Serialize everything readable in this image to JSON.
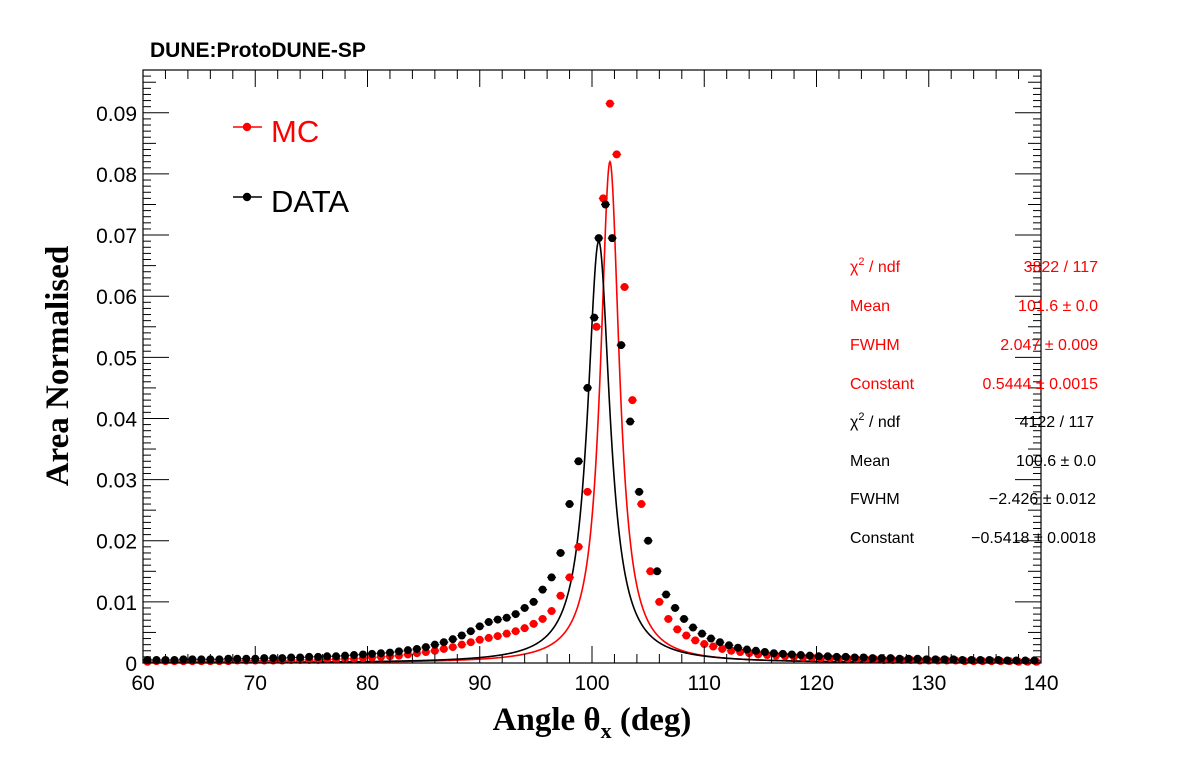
{
  "experiment_label": "DUNE:ProtoDUNE-SP",
  "colors": {
    "mc": "#ff0000",
    "data": "#000000",
    "axis": "#000000"
  },
  "legend": [
    {
      "label": "MC",
      "color": "#ff0000"
    },
    {
      "label": "DATA",
      "color": "#000000"
    }
  ],
  "stats": {
    "mc": [
      {
        "name_prefix": "χ",
        "name_sup": "2",
        "name_suffix": " / ndf",
        "value": "3822 / 117"
      },
      {
        "name_prefix": "Mean",
        "name_sup": "",
        "name_suffix": "",
        "value": "101.6 ± 0.0"
      },
      {
        "name_prefix": "FWHM",
        "name_sup": "",
        "name_suffix": "",
        "value": "2.047 ± 0.009"
      },
      {
        "name_prefix": "Constant",
        "name_sup": "",
        "name_suffix": "",
        "value": "0.5444 ± 0.0015"
      }
    ],
    "data": [
      {
        "name_prefix": "χ",
        "name_sup": "2",
        "name_suffix": " / ndf",
        "value": "4122 / 117"
      },
      {
        "name_prefix": "Mean",
        "name_sup": "",
        "name_suffix": "",
        "value": "100.6 ± 0.0"
      },
      {
        "name_prefix": "FWHM",
        "name_sup": "",
        "name_suffix": "",
        "value": "−2.426 ± 0.012"
      },
      {
        "name_prefix": "Constant",
        "name_sup": "",
        "name_suffix": "",
        "value": "−0.5418 ± 0.0018"
      }
    ]
  },
  "chart_data": {
    "type": "scatter",
    "xlabel_main": "Angle  θ",
    "xlabel_sub": "x",
    "xlabel_unit": " (deg)",
    "ylabel": "Area Normalised",
    "xlim": [
      60,
      140
    ],
    "ylim": [
      0,
      0.097
    ],
    "xticks": [
      60,
      70,
      80,
      90,
      100,
      110,
      120,
      130,
      140
    ],
    "xtick_labels": [
      "60",
      "70",
      "80",
      "90",
      "100",
      "110",
      "120",
      "130",
      "140"
    ],
    "yticks": [
      0,
      0.01,
      0.02,
      0.03,
      0.04,
      0.05,
      0.06,
      0.07,
      0.08,
      0.09
    ],
    "ytick_labels": [
      "0",
      "0.01",
      "0.02",
      "0.03",
      "0.04",
      "0.05",
      "0.06",
      "0.07",
      "0.08",
      "0.09"
    ],
    "bin_width": 0.8,
    "series": [
      {
        "name": "MC",
        "color": "#ff0000",
        "points": [
          [
            60.4,
            0.0002
          ],
          [
            61.2,
            0.0003
          ],
          [
            62.0,
            0.0003
          ],
          [
            62.8,
            0.0003
          ],
          [
            63.6,
            0.0003
          ],
          [
            64.4,
            0.0003
          ],
          [
            65.2,
            0.0003
          ],
          [
            66.0,
            0.0003
          ],
          [
            66.8,
            0.0003
          ],
          [
            67.6,
            0.0003
          ],
          [
            68.4,
            0.0004
          ],
          [
            69.2,
            0.0004
          ],
          [
            70.0,
            0.0004
          ],
          [
            70.8,
            0.0004
          ],
          [
            71.6,
            0.0004
          ],
          [
            72.4,
            0.0004
          ],
          [
            73.2,
            0.0005
          ],
          [
            74.0,
            0.0005
          ],
          [
            74.8,
            0.0005
          ],
          [
            75.6,
            0.0005
          ],
          [
            76.4,
            0.0006
          ],
          [
            77.2,
            0.0006
          ],
          [
            78.0,
            0.0007
          ],
          [
            78.8,
            0.0007
          ],
          [
            79.6,
            0.0008
          ],
          [
            80.4,
            0.0009
          ],
          [
            81.2,
            0.001
          ],
          [
            82.0,
            0.0011
          ],
          [
            82.8,
            0.0012
          ],
          [
            83.6,
            0.0014
          ],
          [
            84.4,
            0.0016
          ],
          [
            85.2,
            0.0018
          ],
          [
            86.0,
            0.002
          ],
          [
            86.8,
            0.0023
          ],
          [
            87.6,
            0.0026
          ],
          [
            88.4,
            0.003
          ],
          [
            89.2,
            0.0034
          ],
          [
            90.0,
            0.0038
          ],
          [
            90.8,
            0.0041
          ],
          [
            91.6,
            0.0044
          ],
          [
            92.4,
            0.0048
          ],
          [
            93.2,
            0.0052
          ],
          [
            94.0,
            0.0057
          ],
          [
            94.8,
            0.0064
          ],
          [
            95.6,
            0.0072
          ],
          [
            96.4,
            0.0085
          ],
          [
            97.2,
            0.011
          ],
          [
            98.0,
            0.014
          ],
          [
            98.8,
            0.019
          ],
          [
            99.6,
            0.028
          ],
          [
            100.4,
            0.055
          ],
          [
            101.0,
            0.076
          ],
          [
            101.6,
            0.0915
          ],
          [
            102.2,
            0.0832
          ],
          [
            102.9,
            0.0615
          ],
          [
            103.6,
            0.043
          ],
          [
            104.4,
            0.026
          ],
          [
            105.2,
            0.015
          ],
          [
            106.0,
            0.01
          ],
          [
            106.8,
            0.0072
          ],
          [
            107.6,
            0.0055
          ],
          [
            108.4,
            0.0045
          ],
          [
            109.2,
            0.0037
          ],
          [
            110.0,
            0.0031
          ],
          [
            110.8,
            0.0027
          ],
          [
            111.6,
            0.0023
          ],
          [
            112.4,
            0.002
          ],
          [
            113.2,
            0.0018
          ],
          [
            114.0,
            0.0016
          ],
          [
            114.8,
            0.0014
          ],
          [
            115.6,
            0.0013
          ],
          [
            116.4,
            0.0012
          ],
          [
            117.2,
            0.0011
          ],
          [
            118.0,
            0.001
          ],
          [
            118.8,
            0.0009
          ],
          [
            119.6,
            0.0009
          ],
          [
            120.4,
            0.0008
          ],
          [
            121.2,
            0.0008
          ],
          [
            122.0,
            0.0007
          ],
          [
            122.8,
            0.0007
          ],
          [
            123.6,
            0.0006
          ],
          [
            124.4,
            0.0006
          ],
          [
            125.2,
            0.0006
          ],
          [
            126.0,
            0.0005
          ],
          [
            126.8,
            0.0005
          ],
          [
            127.6,
            0.0005
          ],
          [
            128.4,
            0.0005
          ],
          [
            129.2,
            0.0004
          ],
          [
            130.0,
            0.0004
          ],
          [
            130.8,
            0.0004
          ],
          [
            131.6,
            0.0004
          ],
          [
            132.4,
            0.0004
          ],
          [
            133.2,
            0.0003
          ],
          [
            134.0,
            0.0003
          ],
          [
            134.8,
            0.0003
          ],
          [
            135.6,
            0.0003
          ],
          [
            136.4,
            0.0003
          ],
          [
            137.2,
            0.0003
          ],
          [
            138.0,
            0.0002
          ],
          [
            138.8,
            0.0002
          ],
          [
            139.6,
            0.0002
          ]
        ]
      },
      {
        "name": "DATA",
        "color": "#000000",
        "points": [
          [
            60.4,
            0.0005
          ],
          [
            61.2,
            0.0005
          ],
          [
            62.0,
            0.0005
          ],
          [
            62.8,
            0.0005
          ],
          [
            63.6,
            0.0006
          ],
          [
            64.4,
            0.0006
          ],
          [
            65.2,
            0.0006
          ],
          [
            66.0,
            0.0006
          ],
          [
            66.8,
            0.0006
          ],
          [
            67.6,
            0.0007
          ],
          [
            68.4,
            0.0007
          ],
          [
            69.2,
            0.0007
          ],
          [
            70.0,
            0.0007
          ],
          [
            70.8,
            0.0008
          ],
          [
            71.6,
            0.0008
          ],
          [
            72.4,
            0.0008
          ],
          [
            73.2,
            0.0009
          ],
          [
            74.0,
            0.0009
          ],
          [
            74.8,
            0.001
          ],
          [
            75.6,
            0.001
          ],
          [
            76.4,
            0.0011
          ],
          [
            77.2,
            0.0011
          ],
          [
            78.0,
            0.0012
          ],
          [
            78.8,
            0.0013
          ],
          [
            79.6,
            0.0014
          ],
          [
            80.4,
            0.0015
          ],
          [
            81.2,
            0.0016
          ],
          [
            82.0,
            0.0017
          ],
          [
            82.8,
            0.0019
          ],
          [
            83.6,
            0.0021
          ],
          [
            84.4,
            0.0023
          ],
          [
            85.2,
            0.0026
          ],
          [
            86.0,
            0.003
          ],
          [
            86.8,
            0.0034
          ],
          [
            87.6,
            0.0039
          ],
          [
            88.4,
            0.0045
          ],
          [
            89.2,
            0.0052
          ],
          [
            90.0,
            0.006
          ],
          [
            90.8,
            0.0067
          ],
          [
            91.6,
            0.0071
          ],
          [
            92.4,
            0.0074
          ],
          [
            93.2,
            0.008
          ],
          [
            94.0,
            0.009
          ],
          [
            94.8,
            0.01
          ],
          [
            95.6,
            0.012
          ],
          [
            96.4,
            0.014
          ],
          [
            97.2,
            0.018
          ],
          [
            98.0,
            0.026
          ],
          [
            98.8,
            0.033
          ],
          [
            99.6,
            0.045
          ],
          [
            100.2,
            0.0565
          ],
          [
            100.6,
            0.0695
          ],
          [
            101.2,
            0.075
          ],
          [
            101.8,
            0.0695
          ],
          [
            102.6,
            0.052
          ],
          [
            103.4,
            0.0395
          ],
          [
            104.2,
            0.028
          ],
          [
            105.0,
            0.02
          ],
          [
            105.8,
            0.015
          ],
          [
            106.6,
            0.0112
          ],
          [
            107.4,
            0.009
          ],
          [
            108.2,
            0.0072
          ],
          [
            109.0,
            0.0058
          ],
          [
            109.8,
            0.0048
          ],
          [
            110.6,
            0.004
          ],
          [
            111.4,
            0.0034
          ],
          [
            112.2,
            0.0029
          ],
          [
            113.0,
            0.0025
          ],
          [
            113.8,
            0.0022
          ],
          [
            114.6,
            0.002
          ],
          [
            115.4,
            0.0018
          ],
          [
            116.2,
            0.0016
          ],
          [
            117.0,
            0.0015
          ],
          [
            117.8,
            0.0014
          ],
          [
            118.6,
            0.0013
          ],
          [
            119.4,
            0.0012
          ],
          [
            120.2,
            0.0011
          ],
          [
            121.0,
            0.0011
          ],
          [
            121.8,
            0.001
          ],
          [
            122.6,
            0.001
          ],
          [
            123.4,
            0.0009
          ],
          [
            124.2,
            0.0009
          ],
          [
            125.0,
            0.0008
          ],
          [
            125.8,
            0.0008
          ],
          [
            126.6,
            0.0008
          ],
          [
            127.4,
            0.0007
          ],
          [
            128.2,
            0.0007
          ],
          [
            129.0,
            0.0007
          ],
          [
            129.8,
            0.0006
          ],
          [
            130.6,
            0.0006
          ],
          [
            131.4,
            0.0006
          ],
          [
            132.2,
            0.0006
          ],
          [
            133.0,
            0.0005
          ],
          [
            133.8,
            0.0005
          ],
          [
            134.6,
            0.0005
          ],
          [
            135.4,
            0.0005
          ],
          [
            136.2,
            0.0005
          ],
          [
            137.0,
            0.0004
          ],
          [
            137.8,
            0.0004
          ],
          [
            138.6,
            0.0004
          ],
          [
            139.4,
            0.0004
          ]
        ]
      }
    ],
    "fits": [
      {
        "name": "MC fit",
        "color": "#ff0000",
        "mean": 101.6,
        "fwhm": 2.047,
        "peak": 0.082,
        "shape": "lorentzian"
      },
      {
        "name": "DATA fit",
        "color": "#000000",
        "mean": 100.6,
        "fwhm": 2.426,
        "peak": 0.069,
        "shape": "lorentzian"
      }
    ]
  }
}
